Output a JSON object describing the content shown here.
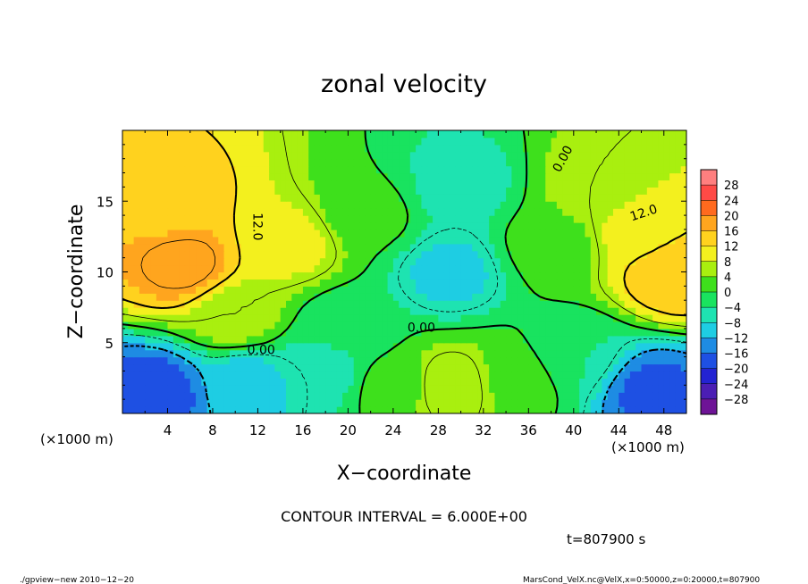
{
  "chart_data": {
    "type": "heatmap",
    "title": "zonal velocity",
    "xlabel": "X−coordinate",
    "ylabel": "Z−coordinate",
    "x_unit_label": "(×1000 m)",
    "xlim": [
      0,
      50
    ],
    "ylim": [
      0,
      20
    ],
    "x_ticks": [
      4,
      8,
      12,
      16,
      20,
      24,
      28,
      32,
      36,
      40,
      44,
      48
    ],
    "x_tick_labels": [
      "4",
      "8",
      "12",
      "16",
      "20",
      "24",
      "28",
      "32",
      "36",
      "40",
      "44",
      "48"
    ],
    "y_ticks": [
      5,
      10,
      15
    ],
    "y_tick_labels": [
      "5",
      "10",
      "15"
    ],
    "contour_labels": [
      {
        "text": "12.0",
        "x": 12,
        "y": 13.2,
        "rotate": 90
      },
      {
        "text": "0.00",
        "x": 12.3,
        "y": 4.5,
        "rotate": 0
      },
      {
        "text": "0.00",
        "x": 26.5,
        "y": 6.1,
        "rotate": 0
      },
      {
        "text": "0.00",
        "x": 39,
        "y": 18.0,
        "rotate": -62
      },
      {
        "text": "12.0",
        "x": 46.2,
        "y": 14.2,
        "rotate": -18
      }
    ],
    "colorbar": {
      "labels": [
        "28",
        "24",
        "20",
        "16",
        "12",
        "8",
        "4",
        "0",
        "−4",
        "−8",
        "−12",
        "−16",
        "−20",
        "−24",
        "−28"
      ],
      "colors": [
        "#ff7f7f",
        "#ff4a46",
        "#ff6a1e",
        "#ffa51e",
        "#ffd21e",
        "#f3f01e",
        "#a9ef0f",
        "#3ee01c",
        "#19e35f",
        "#1ee3b1",
        "#1ecde3",
        "#1e8ce3",
        "#1e50e3",
        "#2323d2",
        "#4b1eb4",
        "#6e1496"
      ]
    },
    "field_peaks": [
      {
        "x": 5.5,
        "z": 10.5,
        "value": 19
      },
      {
        "x": 4,
        "z": 15,
        "value": 14
      },
      {
        "x": 49,
        "z": 10,
        "value": 16
      },
      {
        "x": 46,
        "z": 13,
        "value": 10
      },
      {
        "x": 29,
        "z": 2,
        "value": 8
      },
      {
        "x": 29,
        "z": 10,
        "value": -9
      },
      {
        "x": 30,
        "z": 16,
        "value": -6
      },
      {
        "x": 3,
        "z": 1.5,
        "value": -18
      },
      {
        "x": 47,
        "z": 1.5,
        "value": -17
      },
      {
        "x": 11,
        "z": 2,
        "value": -10
      },
      {
        "x": 18,
        "z": 3,
        "value": -6
      },
      {
        "x": 40,
        "z": 4,
        "value": -4
      },
      {
        "x": 10,
        "z": 7,
        "value": 6
      },
      {
        "x": 15,
        "z": 12,
        "value": 9
      },
      {
        "x": 22,
        "z": 14,
        "value": 1
      },
      {
        "x": 20,
        "z": 6,
        "value": -3
      },
      {
        "x": 38,
        "z": 12,
        "value": 2
      },
      {
        "x": 42,
        "z": 16,
        "value": 6
      },
      {
        "x": 35,
        "z": 2.5,
        "value": 3
      },
      {
        "x": 24,
        "z": 2,
        "value": 2
      }
    ]
  },
  "contour_interval": "CONTOUR INTERVAL = 6.000E+00",
  "time_label": "t=807900 s",
  "footer_left": "./gpview−new   2010−12−20",
  "footer_right": "MarsCond_VelX.nc@VelX,x=0:50000,z=0:20000,t=807900"
}
